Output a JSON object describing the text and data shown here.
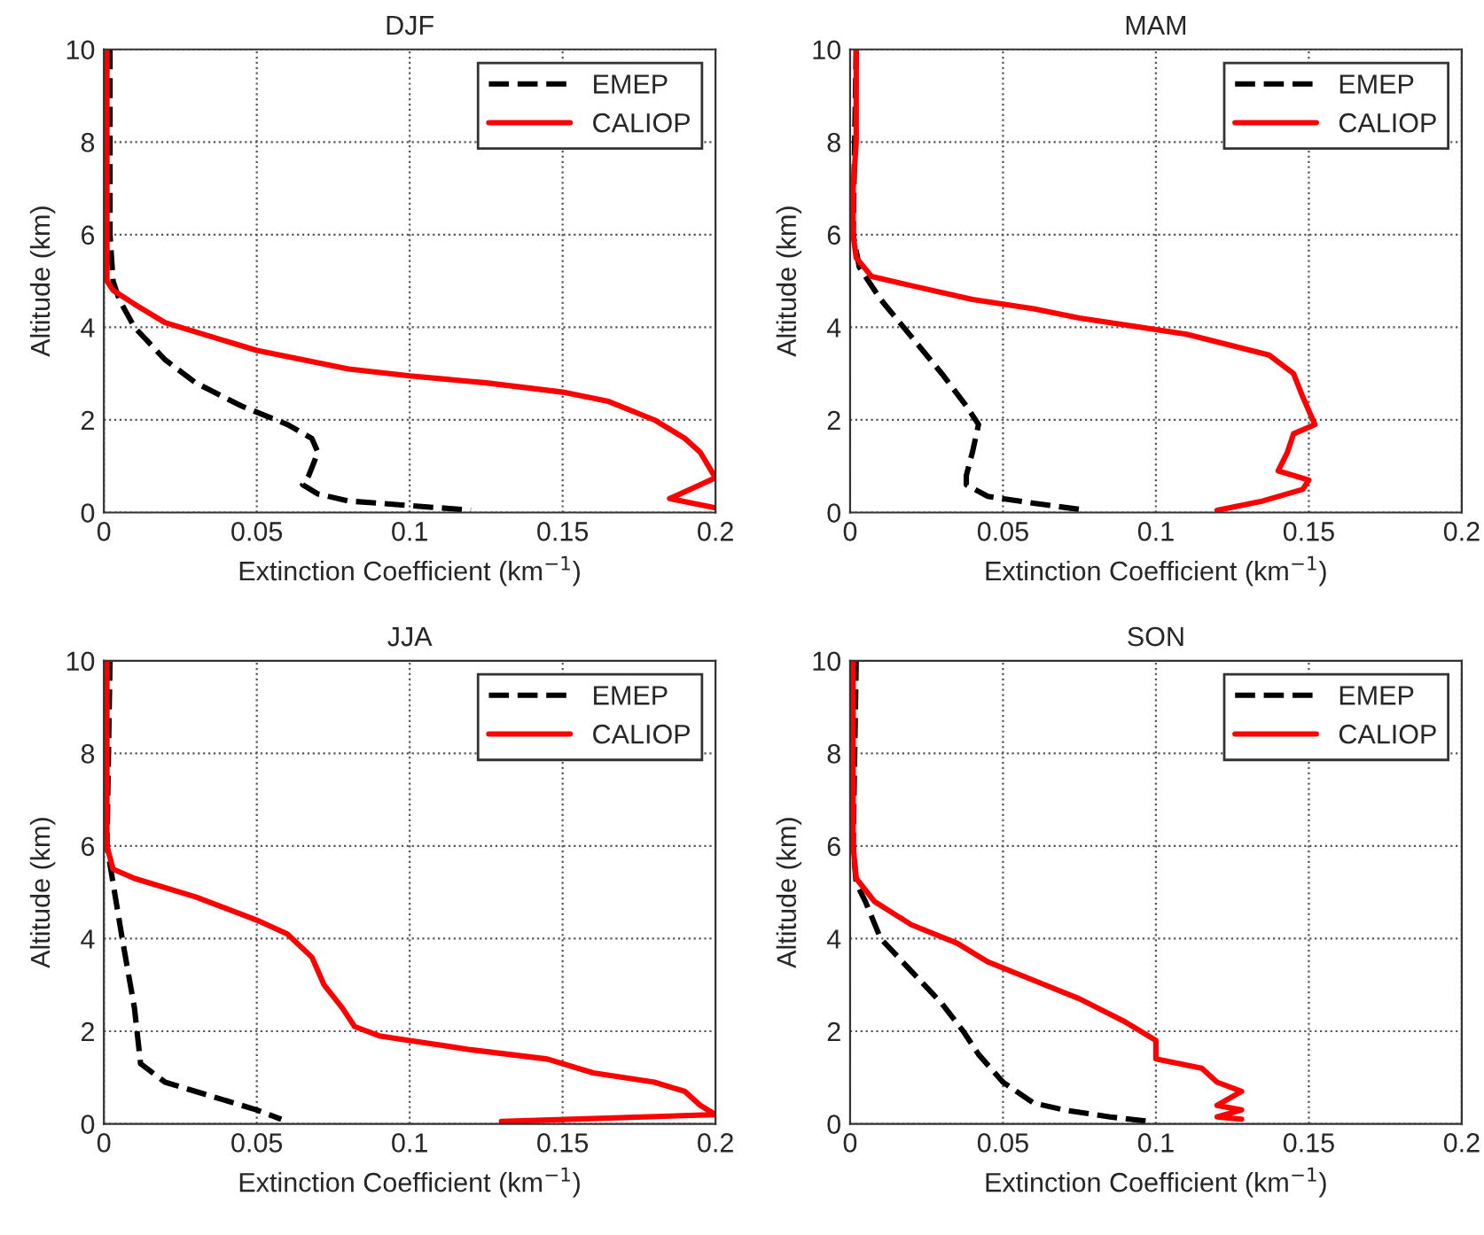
{
  "chart_data": [
    {
      "type": "line",
      "title": "DJF",
      "xlabel": "Extinction Coefficient (km$^{−1}$)",
      "ylabel": "Altitude (km)",
      "xlim": [
        0,
        0.2
      ],
      "ylim": [
        0,
        10
      ],
      "xticks": [
        0,
        0.05,
        0.1,
        0.15,
        0.2
      ],
      "yticks": [
        0,
        2,
        4,
        6,
        8,
        10
      ],
      "grid": true,
      "legend": "top right",
      "series": [
        {
          "name": "EMEP",
          "color": "#000000",
          "line_style": "dashed",
          "x": [
            0.002,
            0.002,
            0.003,
            0.005,
            0.01,
            0.02,
            0.03,
            0.045,
            0.06,
            0.068,
            0.07,
            0.067,
            0.065,
            0.07,
            0.08,
            0.1,
            0.12
          ],
          "values": [
            10,
            6,
            5,
            4.6,
            4,
            3.3,
            2.8,
            2.3,
            1.9,
            1.6,
            1.3,
            0.8,
            0.6,
            0.4,
            0.25,
            0.15,
            0.05
          ]
        },
        {
          "name": "CALIOP",
          "color": "#ff0000",
          "line_style": "solid",
          "x": [
            0.001,
            0.001,
            0.001,
            0.003,
            0.01,
            0.02,
            0.035,
            0.05,
            0.065,
            0.08,
            0.1,
            0.125,
            0.15,
            0.165,
            0.18,
            0.19,
            0.195,
            0.2,
            0.185,
            0.2
          ],
          "values": [
            10,
            6,
            5,
            4.8,
            4.5,
            4.1,
            3.8,
            3.5,
            3.3,
            3.1,
            2.95,
            2.8,
            2.6,
            2.4,
            2,
            1.6,
            1.3,
            0.75,
            0.3,
            0.1
          ]
        }
      ]
    },
    {
      "type": "line",
      "title": "MAM",
      "xlabel": "Extinction Coefficient (km$^{−1}$)",
      "ylabel": "Altitude (km)",
      "xlim": [
        0,
        0.2
      ],
      "ylim": [
        0,
        10
      ],
      "xticks": [
        0,
        0.05,
        0.1,
        0.15,
        0.2
      ],
      "yticks": [
        0,
        2,
        4,
        6,
        8,
        10
      ],
      "grid": true,
      "legend": "top right",
      "series": [
        {
          "name": "EMEP",
          "color": "#000000",
          "line_style": "dashed",
          "x": [
            0.002,
            0.001,
            0.003,
            0.01,
            0.02,
            0.03,
            0.038,
            0.042,
            0.04,
            0.038,
            0.038,
            0.045,
            0.06,
            0.077
          ],
          "values": [
            10,
            6,
            5.3,
            4.6,
            3.8,
            3.0,
            2.3,
            1.9,
            1.3,
            0.8,
            0.6,
            0.35,
            0.2,
            0.05
          ]
        },
        {
          "name": "CALIOP",
          "color": "#ff0000",
          "line_style": "solid",
          "x": [
            0.002,
            0.002,
            0.001,
            0.001,
            0.002,
            0.007,
            0.02,
            0.04,
            0.06,
            0.075,
            0.09,
            0.11,
            0.125,
            0.137,
            0.145,
            0.148,
            0.15,
            0.152,
            0.145,
            0.143,
            0.14,
            0.15,
            0.148,
            0.135,
            0.12
          ],
          "values": [
            10,
            8,
            7,
            6,
            5.5,
            5.1,
            4.9,
            4.6,
            4.4,
            4.2,
            4.05,
            3.85,
            3.6,
            3.4,
            3.0,
            2.5,
            2.2,
            1.9,
            1.7,
            1.3,
            0.9,
            0.7,
            0.5,
            0.25,
            0.05
          ]
        }
      ]
    },
    {
      "type": "line",
      "title": "JJA",
      "xlabel": "Extinction Coefficient (km$^{−1}$)",
      "ylabel": "Altitude (km)",
      "xlim": [
        0,
        0.2
      ],
      "ylim": [
        0,
        10
      ],
      "xticks": [
        0,
        0.05,
        0.1,
        0.15,
        0.2
      ],
      "yticks": [
        0,
        2,
        4,
        6,
        8,
        10
      ],
      "grid": true,
      "legend": "top right",
      "series": [
        {
          "name": "EMEP",
          "color": "#000000",
          "line_style": "dashed",
          "x": [
            0.002,
            0.001,
            0.003,
            0.006,
            0.01,
            0.012,
            0.02,
            0.035,
            0.05,
            0.058
          ],
          "values": [
            10,
            6,
            5.2,
            4,
            2.5,
            1.3,
            0.9,
            0.6,
            0.3,
            0.1
          ]
        },
        {
          "name": "CALIOP",
          "color": "#ff0000",
          "line_style": "solid",
          "x": [
            0.001,
            0.001,
            0.003,
            0.01,
            0.03,
            0.05,
            0.06,
            0.068,
            0.072,
            0.078,
            0.082,
            0.09,
            0.1,
            0.12,
            0.145,
            0.16,
            0.18,
            0.19,
            0.195,
            0.2,
            0.13
          ],
          "values": [
            10,
            6,
            5.5,
            5.3,
            4.9,
            4.4,
            4.1,
            3.6,
            3.0,
            2.5,
            2.1,
            1.9,
            1.8,
            1.6,
            1.4,
            1.1,
            0.9,
            0.7,
            0.4,
            0.2,
            0.05
          ]
        }
      ]
    },
    {
      "type": "line",
      "title": "SON",
      "xlabel": "Extinction Coefficient (km$^{−1}$)",
      "ylabel": "Altitude (km)",
      "xlim": [
        0,
        0.2
      ],
      "ylim": [
        0,
        10
      ],
      "xticks": [
        0,
        0.05,
        0.1,
        0.15,
        0.2
      ],
      "yticks": [
        0,
        2,
        4,
        6,
        8,
        10
      ],
      "grid": true,
      "legend": "top right",
      "series": [
        {
          "name": "EMEP",
          "color": "#000000",
          "line_style": "dashed",
          "x": [
            0.002,
            0.001,
            0.002,
            0.005,
            0.01,
            0.02,
            0.03,
            0.037,
            0.042,
            0.05,
            0.06,
            0.07,
            0.085,
            0.098
          ],
          "values": [
            10,
            6,
            5.2,
            4.8,
            4,
            3.3,
            2.6,
            2,
            1.5,
            0.9,
            0.45,
            0.3,
            0.15,
            0.05
          ]
        },
        {
          "name": "CALIOP",
          "color": "#ff0000",
          "line_style": "solid",
          "x": [
            0.001,
            0.001,
            0.002,
            0.008,
            0.02,
            0.035,
            0.045,
            0.06,
            0.075,
            0.09,
            0.1,
            0.1,
            0.115,
            0.12,
            0.128,
            0.12,
            0.128,
            0.12,
            0.128
          ],
          "values": [
            10,
            6,
            5.3,
            4.8,
            4.3,
            3.9,
            3.5,
            3.1,
            2.7,
            2.2,
            1.8,
            1.4,
            1.2,
            0.9,
            0.7,
            0.4,
            0.3,
            0.15,
            0.1
          ]
        }
      ]
    }
  ]
}
